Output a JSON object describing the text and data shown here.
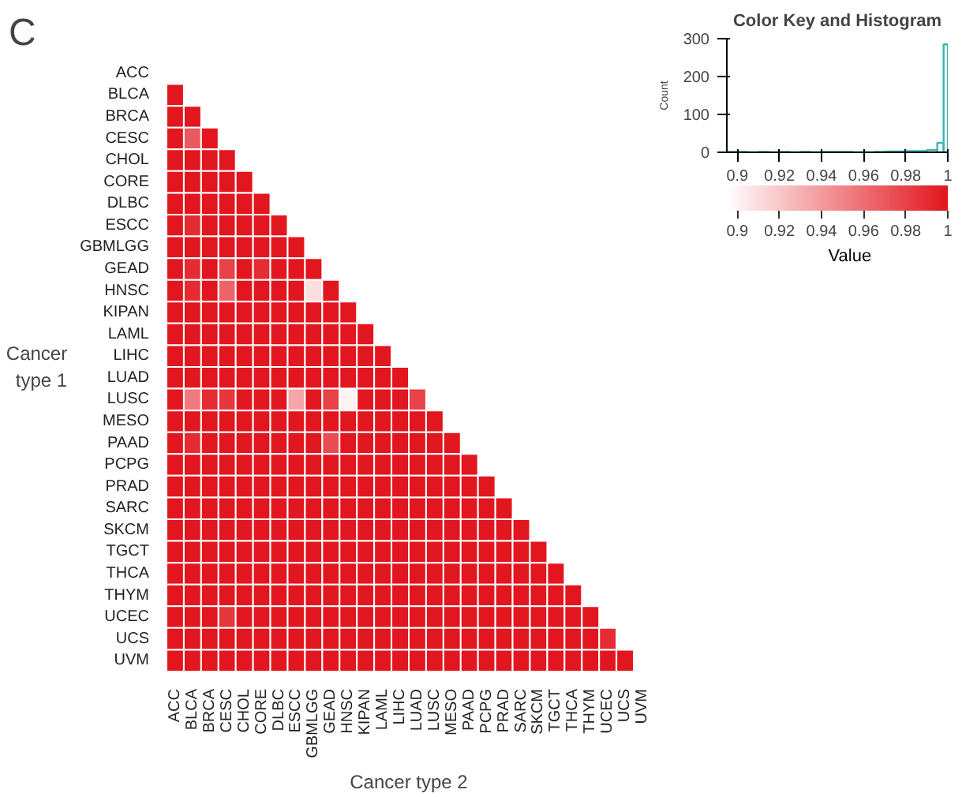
{
  "chart_data": [
    {
      "type": "heatmap",
      "title": "C",
      "xlabel": "Cancer type 2",
      "ylabel": "Cancer type 1",
      "categories": [
        "ACC",
        "BLCA",
        "BRCA",
        "CESC",
        "CHOL",
        "CORE",
        "DLBC",
        "ESCC",
        "GBMLGG",
        "GEAD",
        "HNSC",
        "KIPAN",
        "LAML",
        "LIHC",
        "LUAD",
        "LUSC",
        "MESO",
        "PAAD",
        "PCPG",
        "PRAD",
        "SARC",
        "SKCM",
        "TGCT",
        "THCA",
        "THYM",
        "UCEC",
        "UCS",
        "UVM"
      ],
      "y_categories": [
        "ACC",
        "BLCA",
        "BRCA",
        "CESC",
        "CHOL",
        "CORE",
        "DLBC",
        "ESCC",
        "GBMLGG",
        "GEAD",
        "HNSC",
        "KIPAN",
        "LAML",
        "LIHC",
        "LUAD",
        "LUSC",
        "MESO",
        "PAAD",
        "PCPG",
        "PRAD",
        "SARC",
        "SKCM",
        "TGCT",
        "THCA",
        "THYM",
        "UCEC",
        "UCS",
        "UVM"
      ],
      "cells": [
        [
          null,
          null,
          null,
          null,
          null,
          null,
          null,
          null,
          null,
          null,
          null,
          null,
          null,
          null,
          null,
          null,
          null,
          null,
          null,
          null,
          null,
          null,
          null,
          null,
          null,
          null,
          null,
          null
        ],
        [
          1,
          null,
          null,
          null,
          null,
          null,
          null,
          null,
          null,
          null,
          null,
          null,
          null,
          null,
          null,
          null,
          null,
          null,
          null,
          null,
          null,
          null,
          null,
          null,
          null,
          null,
          null,
          null
        ],
        [
          1,
          1,
          null,
          null,
          null,
          null,
          null,
          null,
          null,
          null,
          null,
          null,
          null,
          null,
          null,
          null,
          null,
          null,
          null,
          null,
          null,
          null,
          null,
          null,
          null,
          null,
          null,
          null
        ],
        [
          1,
          0.97,
          1,
          null,
          null,
          null,
          null,
          null,
          null,
          null,
          null,
          null,
          null,
          null,
          null,
          null,
          null,
          null,
          null,
          null,
          null,
          null,
          null,
          null,
          null,
          null,
          null,
          null
        ],
        [
          1,
          1,
          1,
          1,
          null,
          null,
          null,
          null,
          null,
          null,
          null,
          null,
          null,
          null,
          null,
          null,
          null,
          null,
          null,
          null,
          null,
          null,
          null,
          null,
          null,
          null,
          null,
          null
        ],
        [
          1,
          1,
          1,
          1,
          1,
          null,
          null,
          null,
          null,
          null,
          null,
          null,
          null,
          null,
          null,
          null,
          null,
          null,
          null,
          null,
          null,
          null,
          null,
          null,
          null,
          null,
          null,
          null
        ],
        [
          1,
          1,
          1,
          1,
          1,
          1,
          null,
          null,
          null,
          null,
          null,
          null,
          null,
          null,
          null,
          null,
          null,
          null,
          null,
          null,
          null,
          null,
          null,
          null,
          null,
          null,
          null,
          null
        ],
        [
          1,
          0.99,
          1,
          1,
          1,
          1,
          1,
          null,
          null,
          null,
          null,
          null,
          null,
          null,
          null,
          null,
          null,
          null,
          null,
          null,
          null,
          null,
          null,
          null,
          null,
          null,
          null,
          null
        ],
        [
          1,
          1,
          1,
          1,
          1,
          1,
          1,
          1,
          null,
          null,
          null,
          null,
          null,
          null,
          null,
          null,
          null,
          null,
          null,
          null,
          null,
          null,
          null,
          null,
          null,
          null,
          null,
          null
        ],
        [
          1,
          0.99,
          1,
          0.98,
          1,
          0.99,
          1,
          1,
          1,
          null,
          null,
          null,
          null,
          null,
          null,
          null,
          null,
          null,
          null,
          null,
          null,
          null,
          null,
          null,
          null,
          null,
          null,
          null
        ],
        [
          1,
          0.99,
          1,
          0.965,
          1,
          1,
          1,
          1,
          0.91,
          1,
          null,
          null,
          null,
          null,
          null,
          null,
          null,
          null,
          null,
          null,
          null,
          null,
          null,
          null,
          null,
          null,
          null,
          null
        ],
        [
          1,
          1,
          1,
          1,
          1,
          1,
          1,
          1,
          1,
          1,
          1,
          null,
          null,
          null,
          null,
          null,
          null,
          null,
          null,
          null,
          null,
          null,
          null,
          null,
          null,
          null,
          null,
          null
        ],
        [
          1,
          1,
          1,
          1,
          1,
          1,
          1,
          1,
          1,
          1,
          1,
          1,
          null,
          null,
          null,
          null,
          null,
          null,
          null,
          null,
          null,
          null,
          null,
          null,
          null,
          null,
          null,
          null
        ],
        [
          1,
          1,
          1,
          1,
          1,
          1,
          1,
          1,
          1,
          1,
          1,
          1,
          1,
          null,
          null,
          null,
          null,
          null,
          null,
          null,
          null,
          null,
          null,
          null,
          null,
          null,
          null,
          null
        ],
        [
          1,
          1,
          1,
          1,
          1,
          1,
          1,
          1,
          1,
          1,
          1,
          1,
          1,
          1,
          null,
          null,
          null,
          null,
          null,
          null,
          null,
          null,
          null,
          null,
          null,
          null,
          null,
          null
        ],
        [
          1,
          0.955,
          0.99,
          0.985,
          1,
          1,
          1,
          0.935,
          1,
          0.98,
          0.9,
          1,
          1,
          1,
          0.98,
          null,
          null,
          null,
          null,
          null,
          null,
          null,
          null,
          null,
          null,
          null,
          null,
          null
        ],
        [
          1,
          1,
          1,
          1,
          1,
          1,
          1,
          1,
          1,
          1,
          1,
          1,
          1,
          1,
          1,
          1,
          null,
          null,
          null,
          null,
          null,
          null,
          null,
          null,
          null,
          null,
          null,
          null
        ],
        [
          1,
          0.99,
          1,
          1,
          1,
          1,
          1,
          1,
          1,
          0.975,
          1,
          1,
          1,
          1,
          1,
          1,
          1,
          null,
          null,
          null,
          null,
          null,
          null,
          null,
          null,
          null,
          null,
          null
        ],
        [
          1,
          1,
          1,
          1,
          1,
          1,
          1,
          1,
          1,
          1,
          1,
          1,
          1,
          1,
          1,
          1,
          1,
          1,
          null,
          null,
          null,
          null,
          null,
          null,
          null,
          null,
          null,
          null
        ],
        [
          1,
          1,
          1,
          1,
          1,
          1,
          1,
          1,
          1,
          1,
          1,
          1,
          1,
          1,
          1,
          1,
          1,
          1,
          1,
          null,
          null,
          null,
          null,
          null,
          null,
          null,
          null,
          null
        ],
        [
          1,
          1,
          1,
          1,
          1,
          1,
          1,
          1,
          1,
          1,
          1,
          1,
          1,
          1,
          1,
          1,
          1,
          1,
          1,
          1,
          null,
          null,
          null,
          null,
          null,
          null,
          null,
          null
        ],
        [
          1,
          1,
          1,
          1,
          1,
          1,
          1,
          1,
          1,
          1,
          1,
          1,
          1,
          1,
          1,
          1,
          1,
          1,
          1,
          1,
          1,
          null,
          null,
          null,
          null,
          null,
          null,
          null
        ],
        [
          1,
          1,
          1,
          1,
          1,
          1,
          1,
          1,
          1,
          1,
          1,
          1,
          1,
          1,
          1,
          1,
          1,
          1,
          1,
          1,
          1,
          1,
          null,
          null,
          null,
          null,
          null,
          null
        ],
        [
          1,
          1,
          1,
          1,
          1,
          1,
          1,
          1,
          1,
          1,
          1,
          1,
          1,
          1,
          1,
          1,
          1,
          1,
          1,
          1,
          1,
          1,
          1,
          null,
          null,
          null,
          null,
          null
        ],
        [
          1,
          1,
          1,
          1,
          1,
          1,
          1,
          1,
          1,
          1,
          1,
          1,
          1,
          1,
          1,
          1,
          1,
          1,
          1,
          1,
          1,
          1,
          1,
          1,
          null,
          null,
          null,
          null
        ],
        [
          1,
          1,
          1,
          0.985,
          1,
          1,
          1,
          1,
          1,
          1,
          1,
          1,
          1,
          1,
          1,
          1,
          1,
          1,
          1,
          1,
          1,
          1,
          1,
          1,
          1,
          null,
          null,
          null
        ],
        [
          1,
          1,
          1,
          1,
          1,
          1,
          1,
          1,
          1,
          1,
          1,
          1,
          1,
          1,
          1,
          1,
          1,
          1,
          1,
          1,
          1,
          1,
          1,
          1,
          1,
          0.99,
          null,
          null
        ],
        [
          1,
          1,
          1,
          1,
          1,
          1,
          1,
          1,
          1,
          1,
          1,
          1,
          1,
          1,
          1,
          1,
          1,
          1,
          1,
          1,
          1,
          1,
          1,
          1,
          1,
          1,
          1,
          null
        ]
      ],
      "colors": [
        "#ffffff",
        "#e2161e"
      ],
      "clim": [
        0.895,
        1
      ],
      "cticks": [
        0.9,
        0.92,
        0.94,
        0.96,
        0.98,
        1
      ],
      "clabel": "Value"
    },
    {
      "type": "histogram",
      "title": "Color Key and Histogram",
      "ylabel": "Count",
      "xlim": [
        0.895,
        1
      ],
      "xticks": [
        0.9,
        0.92,
        0.94,
        0.96,
        0.98,
        1
      ],
      "bins": [
        0.895,
        0.9,
        0.905,
        0.91,
        0.915,
        0.92,
        0.925,
        0.93,
        0.935,
        0.94,
        0.945,
        0.95,
        0.955,
        0.96,
        0.965,
        0.97,
        0.975,
        0.98,
        0.985,
        0.99,
        0.995,
        0.998,
        1
      ],
      "values": [
        1,
        1,
        0,
        1,
        0,
        1,
        0,
        1,
        0,
        1,
        1,
        1,
        0,
        0,
        1,
        2,
        2,
        3,
        3,
        6,
        25,
        285
      ],
      "color": "#3cb4b4",
      "ylim": [
        0,
        300
      ],
      "yticks": [
        0,
        100,
        200,
        300
      ]
    }
  ]
}
